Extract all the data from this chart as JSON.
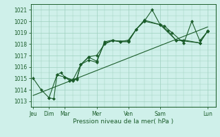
{
  "xlabel": "Pression niveau de la mer( hPa )",
  "bg_color": "#cff0ea",
  "grid_color": "#9ecfbe",
  "line_color": "#1a5c2a",
  "marker_color": "#1a5c2a",
  "ylim": [
    1012.5,
    1021.5
  ],
  "yticks": [
    1013,
    1014,
    1015,
    1016,
    1017,
    1018,
    1019,
    1020,
    1021
  ],
  "xlim": [
    -0.15,
    11.15
  ],
  "xtick_major_pos": [
    0,
    1,
    2,
    4,
    6,
    8,
    11
  ],
  "xtick_major_labels": [
    "Jeu",
    "Dim",
    "Mar",
    "Mer",
    "Ven",
    "Sam",
    "Lun"
  ],
  "series1": {
    "x": [
      0.0,
      0.5,
      1.0,
      1.3,
      1.5,
      1.75,
      2.0,
      2.3,
      2.5,
      2.75,
      3.0,
      3.5,
      4.0,
      4.5,
      5.0,
      5.5,
      6.0,
      6.5,
      7.0,
      7.5,
      8.0,
      8.25,
      8.75,
      9.5,
      10.0,
      10.5,
      11.0
    ],
    "y": [
      1015.0,
      1014.0,
      1013.3,
      1013.2,
      1015.3,
      1015.5,
      1015.1,
      1014.8,
      1014.9,
      1015.0,
      1016.2,
      1016.9,
      1017.0,
      1018.0,
      1018.3,
      1018.2,
      1018.2,
      1019.3,
      1020.0,
      1021.0,
      1019.7,
      1019.6,
      1019.0,
      1018.1,
      1020.0,
      1018.3,
      1019.1
    ]
  },
  "series2": {
    "x": [
      1.0,
      1.5,
      2.0,
      2.5,
      3.0,
      3.5,
      4.0,
      4.5,
      5.0,
      5.5,
      6.0,
      6.5,
      7.0,
      8.0,
      8.5,
      9.0,
      9.5,
      10.5,
      11.0
    ],
    "y": [
      1013.3,
      1015.3,
      1015.1,
      1014.85,
      1016.2,
      1016.6,
      1016.4,
      1018.2,
      1018.35,
      1018.2,
      1018.35,
      1019.3,
      1020.1,
      1019.7,
      1019.15,
      1018.35,
      1018.35,
      1018.1,
      1019.15
    ]
  },
  "series3": {
    "x": [
      2.0,
      2.5,
      2.75,
      3.0,
      3.5,
      4.0,
      4.5,
      5.0,
      6.0,
      6.5,
      7.0,
      8.0,
      9.0,
      10.5,
      11.0
    ],
    "y": [
      1015.1,
      1014.8,
      1014.9,
      1016.2,
      1016.85,
      1016.5,
      1018.1,
      1018.3,
      1018.25,
      1019.3,
      1020.0,
      1019.7,
      1018.35,
      1018.1,
      1019.15
    ]
  },
  "trend_line": {
    "x": [
      0.0,
      11.0
    ],
    "y": [
      1013.5,
      1019.5
    ]
  }
}
